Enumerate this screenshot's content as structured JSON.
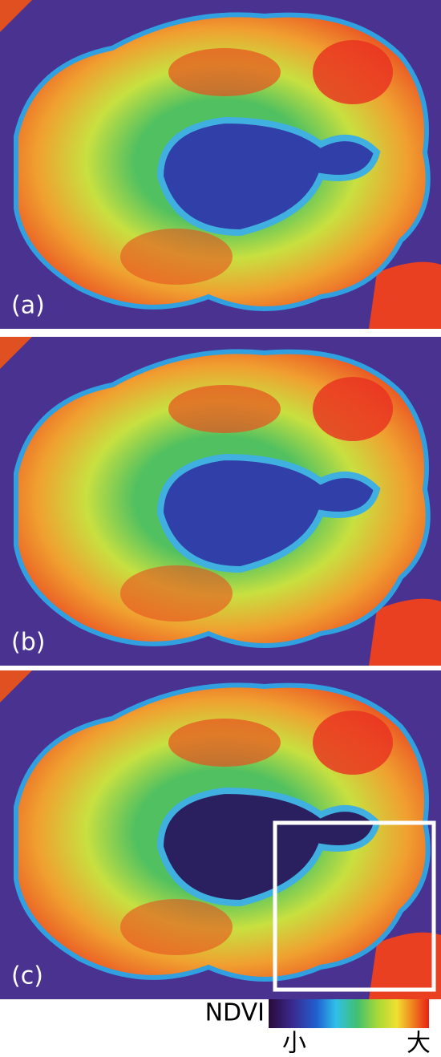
{
  "panels": [
    {
      "label": "(a)"
    },
    {
      "label": "(b)"
    },
    {
      "label": "(c)"
    }
  ],
  "legend": {
    "title": "NDVI",
    "low": "小",
    "high": "大"
  }
}
